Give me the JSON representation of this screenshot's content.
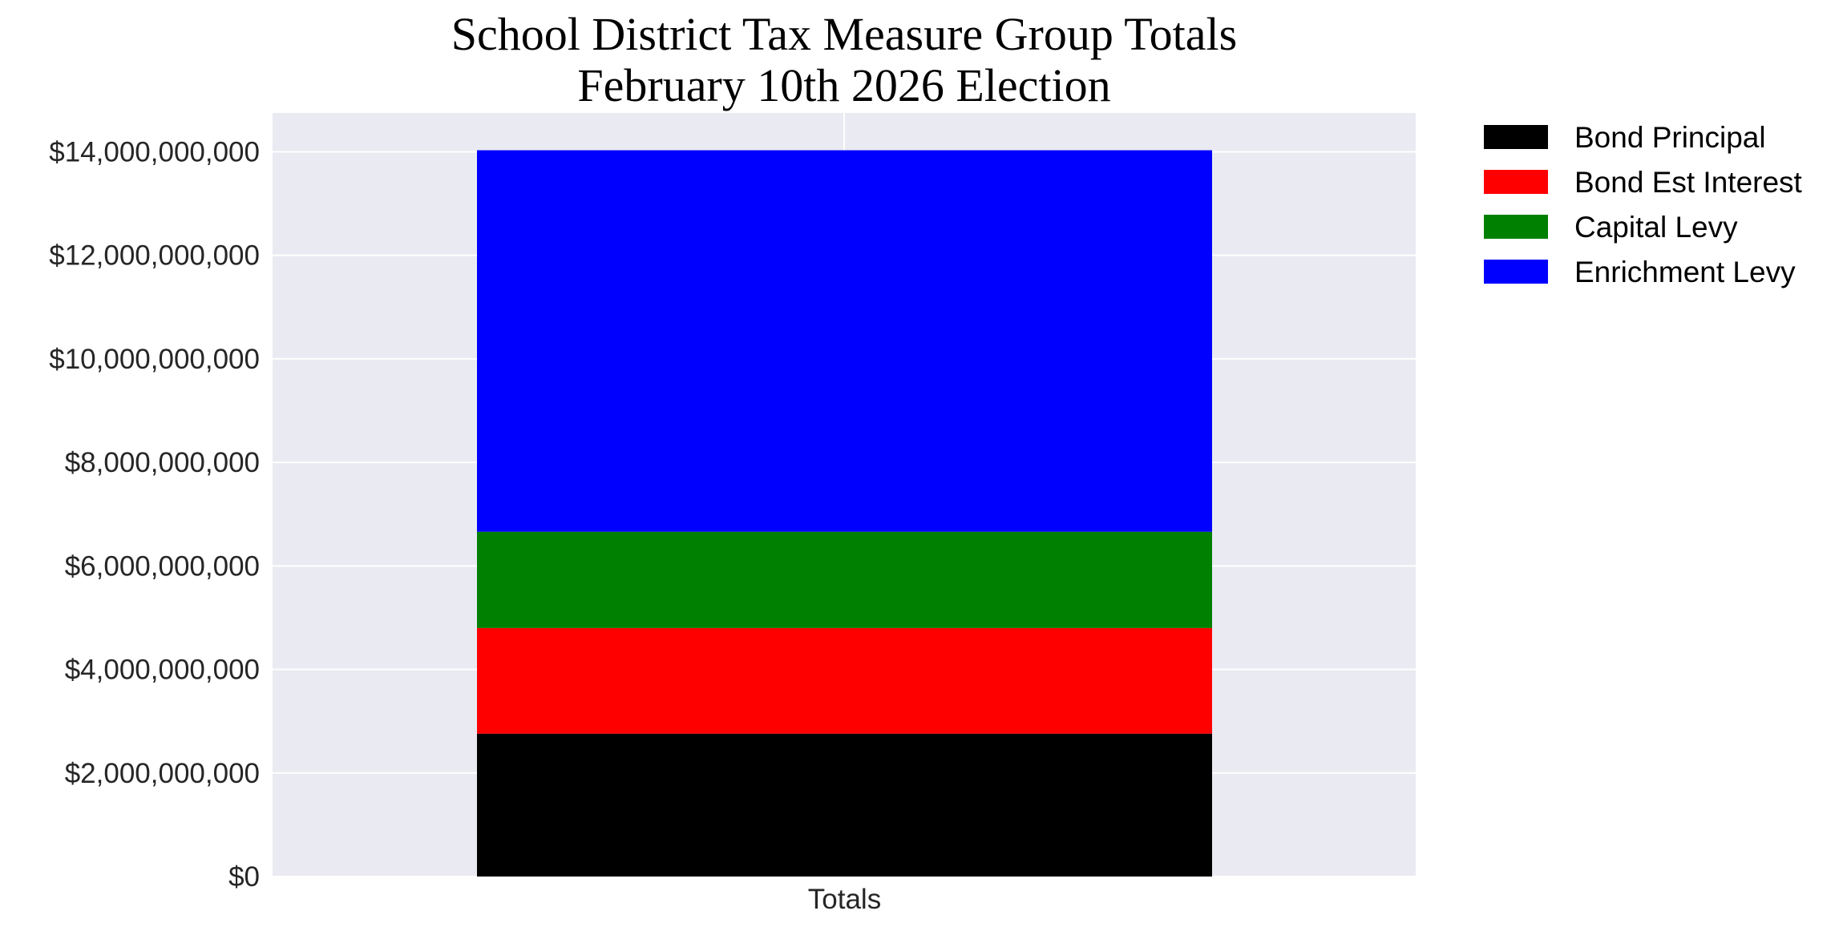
{
  "chart_data": {
    "type": "bar",
    "stacked": true,
    "title": "School District Tax Measure Group Totals",
    "subtitle": "February 10th 2026 Election",
    "categories": [
      "Totals"
    ],
    "series": [
      {
        "name": "Bond Principal",
        "values": [
          2760000000
        ],
        "color": "#000000"
      },
      {
        "name": "Bond Est Interest",
        "values": [
          2040000000
        ],
        "color": "#ff0000"
      },
      {
        "name": "Capital Levy",
        "values": [
          1860000000
        ],
        "color": "#008000"
      },
      {
        "name": "Enrichment Levy",
        "values": [
          7370000000
        ],
        "color": "#0000ff"
      }
    ],
    "yticks": [
      0,
      2000000000,
      4000000000,
      6000000000,
      8000000000,
      10000000000,
      12000000000,
      14000000000
    ],
    "ytick_labels": [
      "$0",
      "$2,000,000,000",
      "$4,000,000,000",
      "$6,000,000,000",
      "$8,000,000,000",
      "$10,000,000,000",
      "$12,000,000,000",
      "$14,000,000,000"
    ],
    "ylim": [
      0,
      14750000000
    ],
    "xlabel": "",
    "ylabel": "",
    "grid": true,
    "legend": "outside-top-right",
    "plot_background": "#eaeaf2",
    "grid_color": "#ffffff"
  }
}
